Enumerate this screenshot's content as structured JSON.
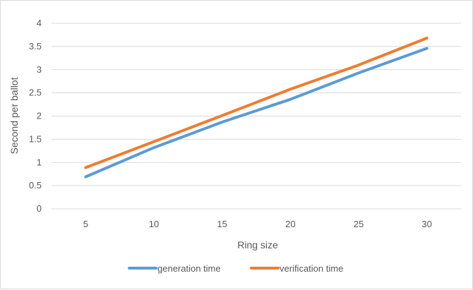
{
  "chart_data": {
    "type": "line",
    "title": "",
    "xlabel": "Ring size",
    "ylabel": "Second per ballot",
    "x": [
      5,
      10,
      15,
      20,
      25,
      30
    ],
    "categories": [
      "5",
      "10",
      "15",
      "20",
      "25",
      "30"
    ],
    "ylim": [
      0,
      4
    ],
    "yticks": [
      "0",
      "0.5",
      "1",
      "1.5",
      "2",
      "2.5",
      "3",
      "3.5",
      "4"
    ],
    "grid": "horizontal",
    "legend_position": "bottom",
    "series": [
      {
        "name": "generation time",
        "color": "#5b9bd5",
        "values": [
          0.69,
          1.32,
          1.87,
          2.36,
          2.93,
          3.46
        ]
      },
      {
        "name": "verification time",
        "color": "#ed7d31",
        "values": [
          0.89,
          1.45,
          2.01,
          2.58,
          3.1,
          3.68
        ]
      }
    ]
  }
}
